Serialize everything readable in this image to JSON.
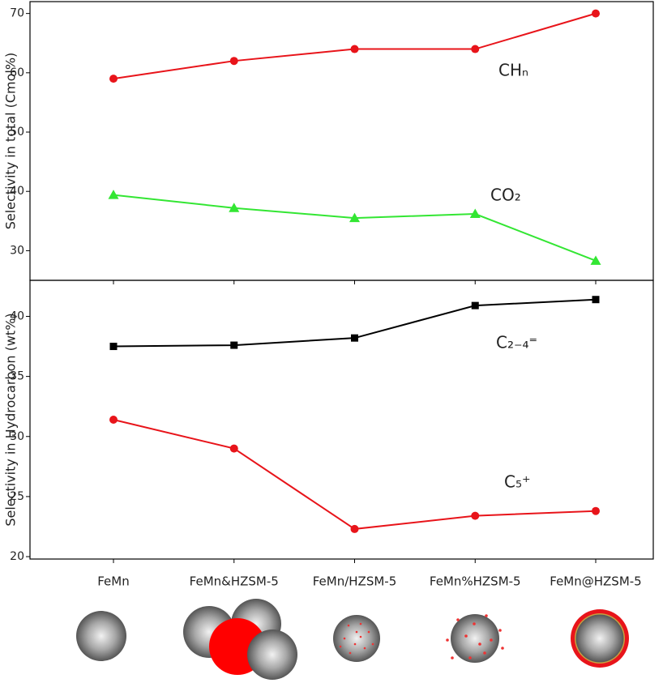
{
  "chart_data": [
    {
      "type": "line",
      "ylabel": "Selectivity in total (Cmol%)",
      "ylim": [
        25,
        72
      ],
      "yticks": [
        30,
        40,
        50,
        60,
        70
      ],
      "series": [
        {
          "name": "CHₙ",
          "color": "#e8141a",
          "marker": "circle",
          "values": [
            59,
            62,
            64,
            64,
            70
          ]
        },
        {
          "name": "CO₂",
          "color": "#33e633",
          "marker": "triangle",
          "values": [
            39.4,
            37.2,
            35.5,
            36.2,
            28.3
          ]
        }
      ]
    },
    {
      "type": "line",
      "ylabel": "Selectivity in Hydrocarbon (wt%)",
      "categories": [
        "FeMn",
        "FeMn&HZSM-5",
        "FeMn/HZSM-5",
        "FeMn%HZSM-5",
        "FeMn@HZSM-5"
      ],
      "ylim": [
        19.8,
        43
      ],
      "yticks": [
        20,
        25,
        30,
        35,
        40
      ],
      "series": [
        {
          "name": "C₂₋₄⁼",
          "color": "#000000",
          "marker": "square",
          "values": [
            37.5,
            37.6,
            38.2,
            40.9,
            41.4
          ]
        },
        {
          "name": "C₅⁺",
          "color": "#e8141a",
          "marker": "circle",
          "values": [
            31.4,
            29.0,
            22.3,
            23.4,
            23.8
          ]
        }
      ]
    }
  ]
}
